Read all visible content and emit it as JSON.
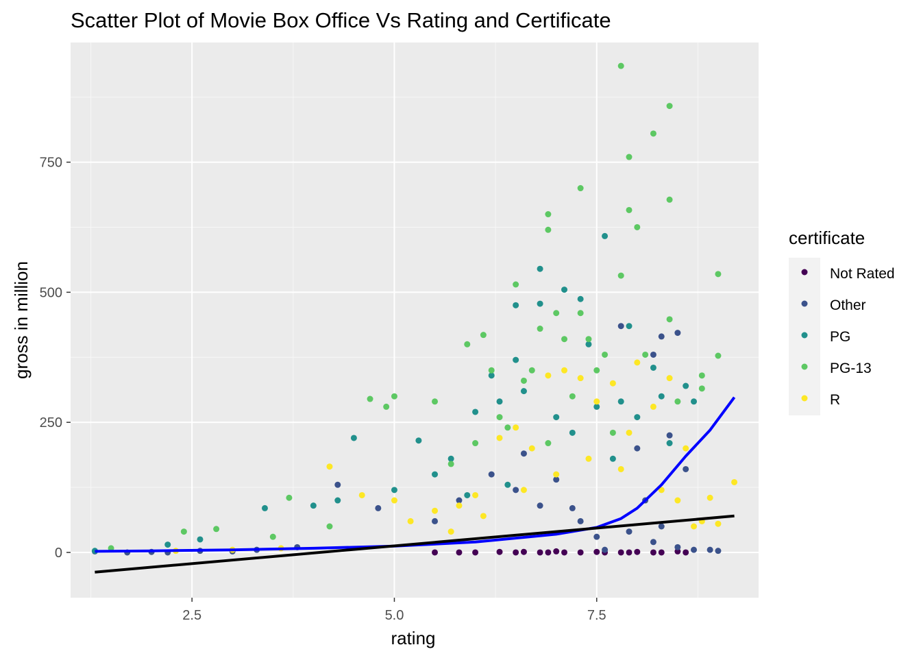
{
  "chart_data": {
    "type": "scatter",
    "title": "Scatter Plot of Movie Box Office Vs Rating and Certificate",
    "xlabel": "rating",
    "ylabel": "gross in million",
    "xlim": [
      1.0,
      9.5
    ],
    "ylim": [
      -87,
      980
    ],
    "x_ticks": [
      2.5,
      5.0,
      7.5
    ],
    "x_tick_labels": [
      "2.5",
      "5.0",
      "7.5"
    ],
    "y_ticks": [
      0,
      250,
      500,
      750
    ],
    "y_tick_labels": [
      "0",
      "250",
      "500",
      "750"
    ],
    "grid": true,
    "panel_background": "#ebebeb",
    "legend": {
      "title": "certificate",
      "position": "right",
      "entries": [
        {
          "label": "Not Rated",
          "color": "#440154"
        },
        {
          "label": "Other",
          "color": "#3b528b"
        },
        {
          "label": "PG",
          "color": "#21908c"
        },
        {
          "label": "PG-13",
          "color": "#5dc863"
        },
        {
          "label": "R",
          "color": "#fde725"
        }
      ]
    },
    "series": [
      {
        "name": "Not Rated",
        "color": "#440154",
        "points": [
          [
            6.0,
            0
          ],
          [
            6.3,
            1
          ],
          [
            6.5,
            0
          ],
          [
            6.8,
            0
          ],
          [
            7.0,
            2
          ],
          [
            7.3,
            0
          ],
          [
            7.5,
            1
          ],
          [
            7.8,
            0
          ],
          [
            8.0,
            1
          ],
          [
            8.3,
            0
          ],
          [
            8.5,
            2
          ],
          [
            8.6,
            0
          ],
          [
            5.8,
            0
          ],
          [
            6.6,
            1
          ],
          [
            7.1,
            0
          ],
          [
            7.9,
            0
          ],
          [
            8.2,
            0
          ],
          [
            5.5,
            0
          ],
          [
            7.6,
            0
          ],
          [
            6.9,
            0
          ]
        ]
      },
      {
        "name": "Other",
        "color": "#3b528b",
        "points": [
          [
            1.3,
            2
          ],
          [
            1.7,
            0
          ],
          [
            2.0,
            1
          ],
          [
            2.2,
            0
          ],
          [
            2.6,
            3
          ],
          [
            3.0,
            2
          ],
          [
            3.3,
            5
          ],
          [
            3.8,
            10
          ],
          [
            4.3,
            130
          ],
          [
            4.8,
            85
          ],
          [
            5.5,
            60
          ],
          [
            5.8,
            100
          ],
          [
            6.2,
            150
          ],
          [
            6.5,
            120
          ],
          [
            6.8,
            90
          ],
          [
            7.0,
            140
          ],
          [
            7.3,
            60
          ],
          [
            7.5,
            30
          ],
          [
            7.8,
            435
          ],
          [
            8.0,
            200
          ],
          [
            8.2,
            380
          ],
          [
            8.3,
            415
          ],
          [
            8.5,
            422
          ],
          [
            8.6,
            160
          ],
          [
            8.9,
            5
          ],
          [
            9.0,
            3
          ],
          [
            7.9,
            40
          ],
          [
            8.1,
            100
          ],
          [
            8.4,
            225
          ],
          [
            6.6,
            190
          ],
          [
            7.2,
            85
          ],
          [
            8.3,
            50
          ],
          [
            8.5,
            10
          ],
          [
            8.7,
            5
          ],
          [
            7.6,
            5
          ],
          [
            8.2,
            20
          ]
        ]
      },
      {
        "name": "PG",
        "color": "#21908c",
        "points": [
          [
            1.3,
            3
          ],
          [
            2.2,
            15
          ],
          [
            2.6,
            25
          ],
          [
            3.4,
            85
          ],
          [
            4.0,
            90
          ],
          [
            4.3,
            100
          ],
          [
            4.5,
            220
          ],
          [
            5.0,
            120
          ],
          [
            5.3,
            215
          ],
          [
            5.7,
            180
          ],
          [
            6.0,
            270
          ],
          [
            6.3,
            290
          ],
          [
            6.5,
            370
          ],
          [
            6.5,
            475
          ],
          [
            6.8,
            545
          ],
          [
            6.8,
            478
          ],
          [
            7.1,
            505
          ],
          [
            7.3,
            487
          ],
          [
            7.4,
            400
          ],
          [
            7.6,
            608
          ],
          [
            7.8,
            290
          ],
          [
            7.9,
            435
          ],
          [
            8.2,
            355
          ],
          [
            8.3,
            300
          ],
          [
            8.6,
            320
          ],
          [
            8.7,
            290
          ],
          [
            6.2,
            340
          ],
          [
            6.6,
            310
          ],
          [
            7.0,
            260
          ],
          [
            7.2,
            230
          ],
          [
            7.5,
            280
          ],
          [
            8.0,
            260
          ],
          [
            5.5,
            150
          ],
          [
            5.9,
            110
          ],
          [
            6.4,
            130
          ],
          [
            7.7,
            180
          ],
          [
            8.4,
            210
          ]
        ]
      },
      {
        "name": "PG-13",
        "color": "#5dc863",
        "points": [
          [
            1.5,
            8
          ],
          [
            2.4,
            40
          ],
          [
            2.8,
            45
          ],
          [
            3.5,
            30
          ],
          [
            3.7,
            105
          ],
          [
            4.2,
            50
          ],
          [
            4.7,
            295
          ],
          [
            4.9,
            280
          ],
          [
            5.0,
            300
          ],
          [
            5.5,
            290
          ],
          [
            5.9,
            400
          ],
          [
            6.1,
            418
          ],
          [
            6.2,
            350
          ],
          [
            6.5,
            515
          ],
          [
            6.7,
            350
          ],
          [
            6.8,
            430
          ],
          [
            6.9,
            650
          ],
          [
            6.9,
            620
          ],
          [
            7.0,
            460
          ],
          [
            7.1,
            410
          ],
          [
            7.3,
            700
          ],
          [
            7.3,
            460
          ],
          [
            7.4,
            410
          ],
          [
            7.6,
            380
          ],
          [
            7.8,
            935
          ],
          [
            7.8,
            532
          ],
          [
            7.9,
            760
          ],
          [
            7.9,
            658
          ],
          [
            8.0,
            625
          ],
          [
            8.2,
            805
          ],
          [
            8.4,
            858
          ],
          [
            8.4,
            678
          ],
          [
            8.4,
            448
          ],
          [
            8.8,
            340
          ],
          [
            8.8,
            315
          ],
          [
            9.0,
            535
          ],
          [
            9.0,
            378
          ],
          [
            6.3,
            260
          ],
          [
            6.6,
            330
          ],
          [
            7.2,
            300
          ],
          [
            7.5,
            350
          ],
          [
            8.1,
            380
          ],
          [
            8.5,
            290
          ],
          [
            5.7,
            170
          ],
          [
            6.0,
            210
          ],
          [
            6.4,
            240
          ],
          [
            6.9,
            210
          ],
          [
            7.7,
            230
          ]
        ]
      },
      {
        "name": "R",
        "color": "#fde725",
        "points": [
          [
            2.3,
            3
          ],
          [
            3.0,
            5
          ],
          [
            3.6,
            8
          ],
          [
            4.2,
            165
          ],
          [
            4.6,
            110
          ],
          [
            5.0,
            100
          ],
          [
            5.5,
            80
          ],
          [
            5.8,
            90
          ],
          [
            6.0,
            110
          ],
          [
            6.3,
            220
          ],
          [
            6.5,
            240
          ],
          [
            6.7,
            200
          ],
          [
            6.9,
            340
          ],
          [
            7.1,
            350
          ],
          [
            7.3,
            335
          ],
          [
            7.5,
            290
          ],
          [
            7.7,
            325
          ],
          [
            7.9,
            230
          ],
          [
            8.0,
            365
          ],
          [
            8.2,
            280
          ],
          [
            8.4,
            335
          ],
          [
            8.6,
            200
          ],
          [
            8.8,
            60
          ],
          [
            8.9,
            105
          ],
          [
            9.0,
            55
          ],
          [
            9.2,
            135
          ],
          [
            5.2,
            60
          ],
          [
            5.7,
            40
          ],
          [
            6.1,
            70
          ],
          [
            6.6,
            120
          ],
          [
            7.0,
            150
          ],
          [
            7.4,
            180
          ],
          [
            7.8,
            160
          ],
          [
            8.3,
            120
          ],
          [
            8.5,
            100
          ],
          [
            8.7,
            50
          ]
        ]
      }
    ],
    "trend_lines": [
      {
        "type": "loess",
        "color": "#0000ff",
        "x": [
          1.3,
          2.0,
          3.0,
          4.0,
          5.0,
          6.0,
          7.0,
          7.5,
          7.8,
          8.0,
          8.3,
          8.6,
          8.9,
          9.2
        ],
        "y": [
          2,
          3,
          5,
          8,
          12,
          20,
          35,
          48,
          65,
          85,
          130,
          185,
          235,
          298
        ]
      },
      {
        "type": "linear",
        "color": "#000000",
        "x": [
          1.3,
          9.2
        ],
        "y": [
          -38,
          70
        ]
      }
    ]
  }
}
